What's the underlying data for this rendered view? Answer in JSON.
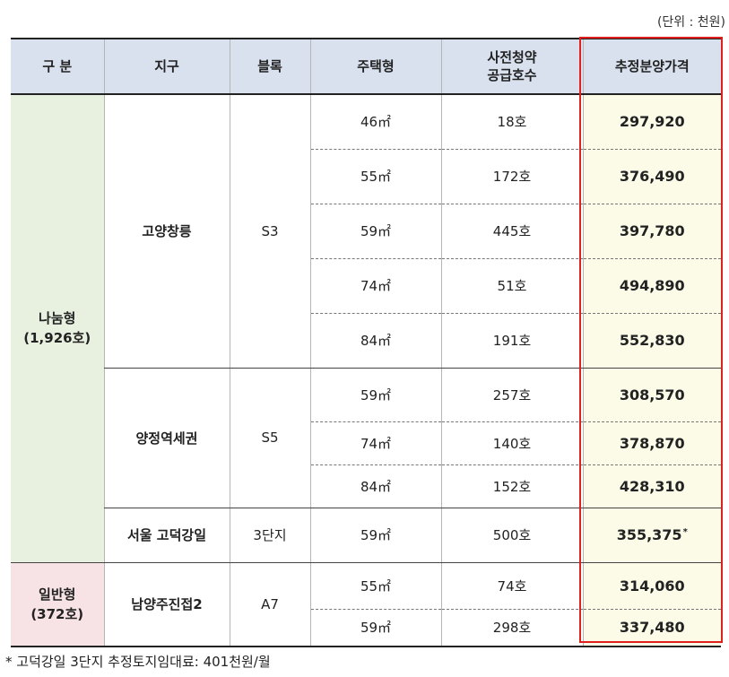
{
  "unit_note": "(단위 : 천원)",
  "headers": [
    "구 분",
    "지구",
    "블록",
    "주택형",
    "사전청약\n공급호수",
    "추정분양가격"
  ],
  "categories": {
    "nanum": "나눔형\n(1,926호)",
    "ilban": "일반형\n(372호)"
  },
  "groups": [
    {
      "district": "고양창릉",
      "block": "S3",
      "rows": [
        {
          "type": "46㎡",
          "units": "18호",
          "price": "297,920"
        },
        {
          "type": "55㎡",
          "units": "172호",
          "price": "376,490"
        },
        {
          "type": "59㎡",
          "units": "445호",
          "price": "397,780"
        },
        {
          "type": "74㎡",
          "units": "51호",
          "price": "494,890"
        },
        {
          "type": "84㎡",
          "units": "191호",
          "price": "552,830"
        }
      ]
    },
    {
      "district": "양정역세권",
      "block": "S5",
      "rows": [
        {
          "type": "59㎡",
          "units": "257호",
          "price": "308,570"
        },
        {
          "type": "74㎡",
          "units": "140호",
          "price": "378,870"
        },
        {
          "type": "84㎡",
          "units": "152호",
          "price": "428,310"
        }
      ]
    },
    {
      "district": "서울 고덕강일",
      "block": "3단지",
      "rows": [
        {
          "type": "59㎡",
          "units": "500호",
          "price": "355,375",
          "mark": "*"
        }
      ]
    },
    {
      "district": "남양주진접2",
      "block": "A7",
      "rows": [
        {
          "type": "55㎡",
          "units": "74호",
          "price": "314,060"
        },
        {
          "type": "59㎡",
          "units": "298호",
          "price": "337,480"
        }
      ]
    }
  ],
  "footnote": "* 고덕강일 3단지 추정토지임대료: 401천원/월",
  "colors": {
    "header_bg": "#d9e1ee",
    "nanum_bg": "#e8f0df",
    "ilban_bg": "#f7e3e5",
    "price_bg": "#fbfbe8",
    "highlight_border": "#e0201c"
  }
}
